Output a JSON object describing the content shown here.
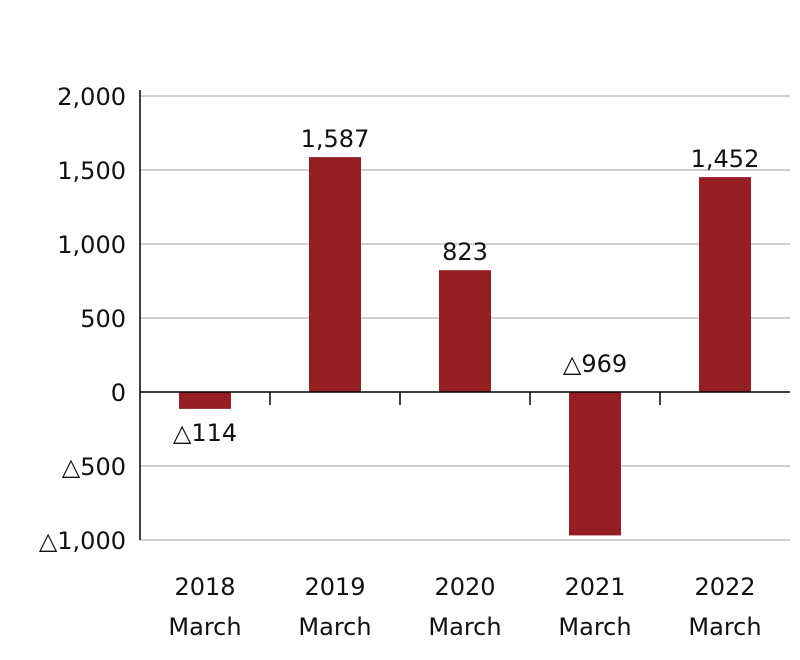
{
  "chart_data": {
    "type": "bar",
    "categories": [
      [
        "2018",
        "March"
      ],
      [
        "2019",
        "March"
      ],
      [
        "2020",
        "March"
      ],
      [
        "2021",
        "March"
      ],
      [
        "2022",
        "March"
      ]
    ],
    "values": [
      -114,
      1587,
      823,
      -969,
      1452
    ],
    "value_labels": [
      "△114",
      "1,587",
      "823",
      "△969",
      "1,452"
    ],
    "y_ticks": [
      {
        "value": 2000,
        "label": "2,000"
      },
      {
        "value": 1500,
        "label": "1,500"
      },
      {
        "value": 1000,
        "label": "1,000"
      },
      {
        "value": 500,
        "label": "500"
      },
      {
        "value": 0,
        "label": "0"
      },
      {
        "value": -500,
        "label": "△500"
      },
      {
        "value": -1000,
        "label": "△1,000"
      }
    ],
    "ylim": [
      -1000,
      2000
    ],
    "grid": true,
    "bar_color": "#951E23",
    "grid_color": "#b5b5b5",
    "axis_color": "#000000",
    "title": "",
    "xlabel": "",
    "ylabel": ""
  }
}
